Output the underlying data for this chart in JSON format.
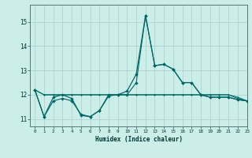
{
  "title": "",
  "xlabel": "Humidex (Indice chaleur)",
  "xlim": [
    -0.5,
    23
  ],
  "ylim": [
    10.7,
    15.7
  ],
  "yticks": [
    11,
    12,
    13,
    14,
    15
  ],
  "xticks": [
    0,
    1,
    2,
    3,
    4,
    5,
    6,
    7,
    8,
    9,
    10,
    11,
    12,
    13,
    14,
    15,
    16,
    17,
    18,
    19,
    20,
    21,
    22,
    23
  ],
  "bg_color": "#cceee8",
  "line_color": "#006666",
  "grid_color": "#aacccc",
  "y_main": [
    12.2,
    11.1,
    11.9,
    12.0,
    11.85,
    11.15,
    11.1,
    11.35,
    12.0,
    12.0,
    12.15,
    12.85,
    15.25,
    13.2,
    13.25,
    13.05,
    12.5,
    12.5,
    12.0,
    11.9,
    11.9,
    11.9,
    11.8,
    11.75
  ],
  "y_flat1": [
    12.2,
    12.0,
    12.0,
    12.0,
    12.0,
    12.0,
    12.0,
    12.0,
    12.0,
    12.0,
    12.0,
    12.0,
    12.0,
    12.0,
    12.0,
    12.0,
    12.0,
    12.0,
    12.0,
    12.0,
    12.0,
    12.0,
    11.9,
    11.75
  ],
  "y_flat2": [
    12.2,
    12.0,
    12.0,
    12.0,
    12.0,
    12.0,
    12.0,
    12.0,
    12.0,
    12.0,
    12.0,
    12.0,
    12.0,
    12.0,
    12.0,
    12.0,
    12.0,
    12.0,
    12.0,
    12.0,
    12.0,
    12.0,
    11.85,
    11.75
  ],
  "y_secondary": [
    12.2,
    11.1,
    11.75,
    11.85,
    11.75,
    11.2,
    11.1,
    11.35,
    11.95,
    12.0,
    12.0,
    12.5,
    15.25,
    13.2,
    13.25,
    13.05,
    12.5,
    12.5,
    12.0,
    11.9,
    11.9,
    11.9,
    11.8,
    11.75
  ]
}
